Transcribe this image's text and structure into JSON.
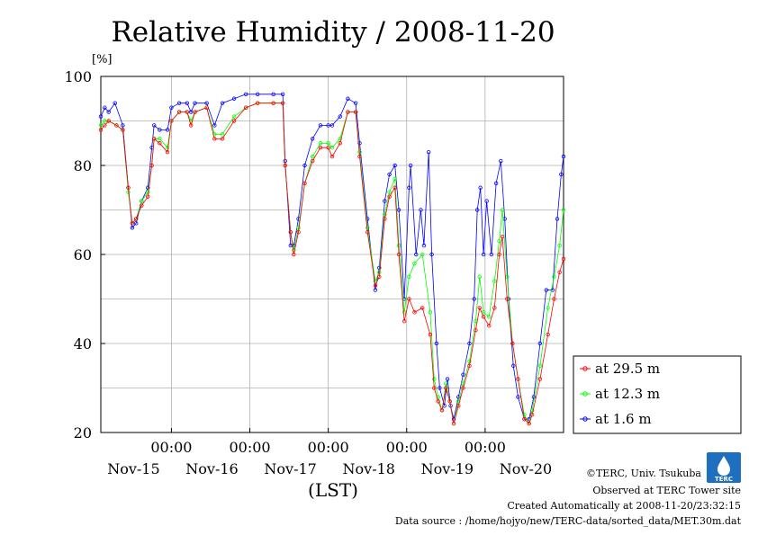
{
  "chart_data": {
    "type": "line",
    "title": "Relative Humidity / 2008-11-20",
    "unit_label": "[%]",
    "xlabel": "(LST)",
    "ylim": [
      20,
      100
    ],
    "yticks": [
      20,
      40,
      60,
      80,
      100
    ],
    "xlim": [
      -0.9,
      5.0
    ],
    "grid": true,
    "legend_position": "right",
    "x_tick_labels": [
      {
        "x": 0,
        "top": "00:00",
        "bottom": "Nov-15"
      },
      {
        "x": 1,
        "top": "00:00",
        "bottom": "Nov-16"
      },
      {
        "x": 2,
        "top": "00:00",
        "bottom": "Nov-17"
      },
      {
        "x": 3,
        "top": "00:00",
        "bottom": "Nov-18"
      },
      {
        "x": 4,
        "top": "00:00",
        "bottom": "Nov-19"
      },
      {
        "x": 5,
        "top": "",
        "bottom": "Nov-20"
      }
    ],
    "series": [
      {
        "name": "at 29.5 m",
        "color": "#ff0000",
        "points": [
          [
            -0.9,
            88
          ],
          [
            -0.85,
            89
          ],
          [
            -0.8,
            90
          ],
          [
            -0.7,
            89
          ],
          [
            -0.62,
            88
          ],
          [
            -0.55,
            75
          ],
          [
            -0.5,
            67
          ],
          [
            -0.45,
            68
          ],
          [
            -0.38,
            71
          ],
          [
            -0.3,
            73
          ],
          [
            -0.25,
            80
          ],
          [
            -0.22,
            86
          ],
          [
            -0.15,
            85
          ],
          [
            -0.05,
            83
          ],
          [
            0.0,
            90
          ],
          [
            0.1,
            92
          ],
          [
            0.2,
            92
          ],
          [
            0.25,
            89
          ],
          [
            0.3,
            92
          ],
          [
            0.45,
            93
          ],
          [
            0.55,
            86
          ],
          [
            0.65,
            86
          ],
          [
            0.8,
            90
          ],
          [
            0.95,
            93
          ],
          [
            1.1,
            94
          ],
          [
            1.3,
            94
          ],
          [
            1.42,
            94
          ],
          [
            1.45,
            80
          ],
          [
            1.52,
            65
          ],
          [
            1.56,
            60
          ],
          [
            1.62,
            65
          ],
          [
            1.7,
            76
          ],
          [
            1.8,
            81
          ],
          [
            1.9,
            84
          ],
          [
            2.0,
            84
          ],
          [
            2.05,
            82
          ],
          [
            2.15,
            85
          ],
          [
            2.25,
            92
          ],
          [
            2.35,
            92
          ],
          [
            2.4,
            82
          ],
          [
            2.5,
            65
          ],
          [
            2.6,
            53
          ],
          [
            2.65,
            55
          ],
          [
            2.72,
            68
          ],
          [
            2.78,
            73
          ],
          [
            2.85,
            75
          ],
          [
            2.9,
            60
          ],
          [
            2.97,
            45
          ],
          [
            3.03,
            50
          ],
          [
            3.1,
            47
          ],
          [
            3.2,
            48
          ],
          [
            3.3,
            42
          ],
          [
            3.35,
            30
          ],
          [
            3.4,
            27
          ],
          [
            3.45,
            25
          ],
          [
            3.5,
            30
          ],
          [
            3.55,
            27
          ],
          [
            3.6,
            22
          ],
          [
            3.66,
            26
          ],
          [
            3.72,
            30
          ],
          [
            3.8,
            35
          ],
          [
            3.88,
            43
          ],
          [
            3.93,
            48
          ],
          [
            3.98,
            46
          ],
          [
            4.05,
            44
          ],
          [
            4.12,
            48
          ],
          [
            4.18,
            60
          ],
          [
            4.22,
            64
          ],
          [
            4.28,
            50
          ],
          [
            4.35,
            40
          ],
          [
            4.42,
            32
          ],
          [
            4.5,
            23
          ],
          [
            4.56,
            22
          ],
          [
            4.6,
            24
          ],
          [
            4.7,
            32
          ],
          [
            4.8,
            42
          ],
          [
            4.88,
            50
          ],
          [
            4.95,
            56
          ],
          [
            5.0,
            59
          ]
        ]
      },
      {
        "name": "at 12.3 m",
        "color": "#00ff00",
        "points": [
          [
            -0.9,
            89
          ],
          [
            -0.85,
            90
          ],
          [
            -0.8,
            90
          ],
          [
            -0.7,
            89
          ],
          [
            -0.62,
            88
          ],
          [
            -0.55,
            74
          ],
          [
            -0.5,
            67
          ],
          [
            -0.45,
            68
          ],
          [
            -0.38,
            72
          ],
          [
            -0.3,
            74
          ],
          [
            -0.25,
            80
          ],
          [
            -0.22,
            86
          ],
          [
            -0.15,
            86
          ],
          [
            -0.05,
            84
          ],
          [
            0.0,
            90
          ],
          [
            0.1,
            92
          ],
          [
            0.2,
            92
          ],
          [
            0.25,
            90
          ],
          [
            0.3,
            92
          ],
          [
            0.45,
            93
          ],
          [
            0.55,
            87
          ],
          [
            0.65,
            87
          ],
          [
            0.8,
            91
          ],
          [
            0.95,
            93
          ],
          [
            1.1,
            94
          ],
          [
            1.3,
            94
          ],
          [
            1.42,
            94
          ],
          [
            1.45,
            80
          ],
          [
            1.52,
            65
          ],
          [
            1.56,
            61
          ],
          [
            1.62,
            66
          ],
          [
            1.7,
            76
          ],
          [
            1.8,
            82
          ],
          [
            1.9,
            85
          ],
          [
            2.0,
            85
          ],
          [
            2.05,
            84
          ],
          [
            2.15,
            86
          ],
          [
            2.25,
            92
          ],
          [
            2.35,
            92
          ],
          [
            2.4,
            83
          ],
          [
            2.5,
            66
          ],
          [
            2.6,
            54
          ],
          [
            2.65,
            56
          ],
          [
            2.72,
            69
          ],
          [
            2.78,
            74
          ],
          [
            2.85,
            77
          ],
          [
            2.9,
            62
          ],
          [
            2.97,
            47
          ],
          [
            3.03,
            55
          ],
          [
            3.1,
            58
          ],
          [
            3.2,
            60
          ],
          [
            3.3,
            47
          ],
          [
            3.35,
            32
          ],
          [
            3.4,
            28
          ],
          [
            3.45,
            25
          ],
          [
            3.5,
            31
          ],
          [
            3.55,
            27
          ],
          [
            3.6,
            22
          ],
          [
            3.66,
            27
          ],
          [
            3.72,
            31
          ],
          [
            3.8,
            36
          ],
          [
            3.88,
            45
          ],
          [
            3.93,
            55
          ],
          [
            3.98,
            47
          ],
          [
            4.05,
            46
          ],
          [
            4.12,
            54
          ],
          [
            4.18,
            63
          ],
          [
            4.22,
            70
          ],
          [
            4.28,
            55
          ],
          [
            4.35,
            40
          ],
          [
            4.42,
            32
          ],
          [
            4.5,
            24
          ],
          [
            4.56,
            22
          ],
          [
            4.6,
            25
          ],
          [
            4.7,
            35
          ],
          [
            4.8,
            48
          ],
          [
            4.88,
            55
          ],
          [
            4.95,
            62
          ],
          [
            5.0,
            70
          ]
        ]
      },
      {
        "name": "at 1.6 m",
        "color": "#0000ff",
        "points": [
          [
            -0.9,
            91
          ],
          [
            -0.85,
            93
          ],
          [
            -0.8,
            92
          ],
          [
            -0.72,
            94
          ],
          [
            -0.62,
            89
          ],
          [
            -0.55,
            75
          ],
          [
            -0.5,
            66
          ],
          [
            -0.45,
            67
          ],
          [
            -0.38,
            72
          ],
          [
            -0.3,
            75
          ],
          [
            -0.25,
            84
          ],
          [
            -0.22,
            89
          ],
          [
            -0.15,
            88
          ],
          [
            -0.05,
            88
          ],
          [
            0.0,
            93
          ],
          [
            0.1,
            94
          ],
          [
            0.2,
            94
          ],
          [
            0.25,
            92
          ],
          [
            0.3,
            94
          ],
          [
            0.45,
            94
          ],
          [
            0.55,
            89
          ],
          [
            0.65,
            94
          ],
          [
            0.8,
            95
          ],
          [
            0.95,
            96
          ],
          [
            1.1,
            96
          ],
          [
            1.3,
            96
          ],
          [
            1.42,
            96
          ],
          [
            1.45,
            81
          ],
          [
            1.52,
            62
          ],
          [
            1.56,
            62
          ],
          [
            1.62,
            68
          ],
          [
            1.7,
            80
          ],
          [
            1.8,
            86
          ],
          [
            1.9,
            89
          ],
          [
            2.0,
            89
          ],
          [
            2.05,
            89
          ],
          [
            2.15,
            91
          ],
          [
            2.25,
            95
          ],
          [
            2.35,
            94
          ],
          [
            2.4,
            85
          ],
          [
            2.5,
            68
          ],
          [
            2.6,
            52
          ],
          [
            2.65,
            57
          ],
          [
            2.72,
            72
          ],
          [
            2.78,
            78
          ],
          [
            2.85,
            80
          ],
          [
            2.9,
            70
          ],
          [
            2.97,
            50
          ],
          [
            3.03,
            75
          ],
          [
            3.05,
            80
          ],
          [
            3.12,
            60
          ],
          [
            3.18,
            70
          ],
          [
            3.22,
            62
          ],
          [
            3.28,
            83
          ],
          [
            3.32,
            60
          ],
          [
            3.38,
            40
          ],
          [
            3.42,
            30
          ],
          [
            3.48,
            26
          ],
          [
            3.52,
            32
          ],
          [
            3.56,
            26
          ],
          [
            3.6,
            23
          ],
          [
            3.66,
            28
          ],
          [
            3.72,
            33
          ],
          [
            3.8,
            40
          ],
          [
            3.86,
            50
          ],
          [
            3.9,
            70
          ],
          [
            3.94,
            75
          ],
          [
            3.98,
            60
          ],
          [
            4.02,
            72
          ],
          [
            4.08,
            60
          ],
          [
            4.14,
            76
          ],
          [
            4.2,
            81
          ],
          [
            4.25,
            68
          ],
          [
            4.3,
            50
          ],
          [
            4.36,
            35
          ],
          [
            4.42,
            28
          ],
          [
            4.5,
            23
          ],
          [
            4.56,
            23
          ],
          [
            4.62,
            28
          ],
          [
            4.7,
            40
          ],
          [
            4.78,
            52
          ],
          [
            4.86,
            52
          ],
          [
            4.92,
            68
          ],
          [
            4.97,
            78
          ],
          [
            5.0,
            82
          ]
        ]
      }
    ]
  },
  "credits": {
    "copyright": "©TERC, Univ. Tsukuba",
    "observed": "Observed at TERC Tower site",
    "created": "Created Automatically at 2008-11-20/23:32:15",
    "source": "Data source : /home/hojyo/new/TERC-data/sorted_data/MET.30m.dat",
    "logo_text": "TERC"
  }
}
